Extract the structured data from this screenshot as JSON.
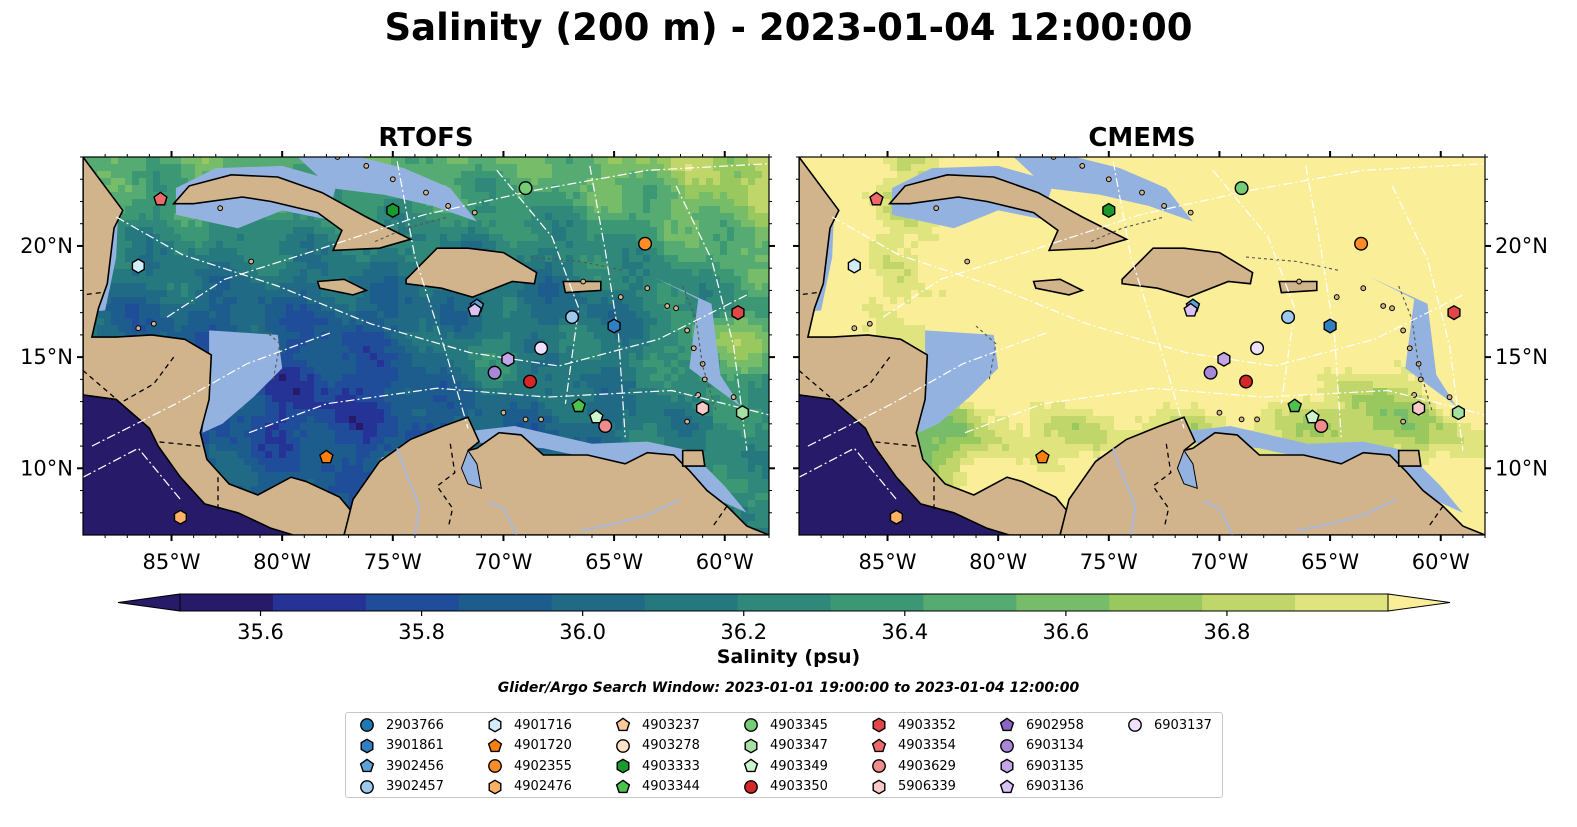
{
  "title": "Salinity (200 m) - 2023-01-04 12:00:00",
  "colors": {
    "land": "#d2b48c",
    "shelf": "#94b2e0",
    "deep_ocean": "#271a68",
    "border_line": "#000000",
    "track_line": "#ffffff",
    "river": "#a9b8d8"
  },
  "chart_data": [
    {
      "type": "heatmap",
      "title": "RTOFS",
      "x_ticks": [
        "85°W",
        "80°W",
        "75°W",
        "70°W",
        "65°W",
        "60°W"
      ],
      "y_ticks": [
        "20°N",
        "15°N",
        "10°N"
      ],
      "y_axis_side": "left",
      "xlim": [
        -89,
        -58
      ],
      "ylim": [
        7,
        24
      ],
      "pattern": "mostly low salinity (35.6–36.0) in the western and central Caribbean; higher values (36.4–36.9) in the northeast near the Greater Antilles and Atlantic"
    },
    {
      "type": "heatmap",
      "title": "CMEMS",
      "x_ticks": [
        "85°W",
        "80°W",
        "75°W",
        "70°W",
        "65°W",
        "60°W"
      ],
      "y_ticks": [
        "20°N",
        "15°N",
        "10°N"
      ],
      "y_axis_side": "right",
      "xlim": [
        -89,
        -58
      ],
      "ylim": [
        7,
        24
      ],
      "pattern": "mostly high salinity (above 36.8) across the Caribbean; moderate values (36.4–36.8) along the southern and western margins"
    }
  ],
  "colorbar": {
    "label": "Salinity (psu)",
    "min": 35.5,
    "max": 37.0,
    "step": 0.1,
    "ticks": [
      "35.6",
      "35.8",
      "36.0",
      "36.2",
      "36.4",
      "36.6",
      "36.8"
    ],
    "extend": "both",
    "colors": [
      "#271a68",
      "#263396",
      "#1f4d9a",
      "#1d5d8e",
      "#216a86",
      "#26787f",
      "#2f8879",
      "#3c9874",
      "#56ab73",
      "#76bc69",
      "#99c85f",
      "#c0d66a",
      "#dfe47f",
      "#fbee98"
    ]
  },
  "search_window": "Glider/Argo Search Window: 2023-01-01 19:00:00 to 2023-01-04 12:00:00",
  "floats": [
    {
      "id": "2903766",
      "marker": "circle",
      "color": "#1f77b4",
      "lon": null,
      "lat": null
    },
    {
      "id": "3901861",
      "marker": "hexagon",
      "color": "#2f7fc1",
      "lon": -65.0,
      "lat": 16.4
    },
    {
      "id": "3902456",
      "marker": "pentagon",
      "color": "#5ba3d9",
      "lon": -71.2,
      "lat": 17.3
    },
    {
      "id": "3902457",
      "marker": "circle",
      "color": "#9cc9ec",
      "lon": -66.9,
      "lat": 16.8
    },
    {
      "id": "4901716",
      "marker": "hexagon",
      "color": "#d3ecf9",
      "lon": -86.5,
      "lat": 19.1
    },
    {
      "id": "4901720",
      "marker": "pentagon",
      "color": "#ff7f0e",
      "lon": -78.0,
      "lat": 10.5
    },
    {
      "id": "4902355",
      "marker": "circle",
      "color": "#ff8c29",
      "lon": -63.6,
      "lat": 20.1
    },
    {
      "id": "4902476",
      "marker": "hexagon",
      "color": "#ffb266",
      "lon": -84.6,
      "lat": 7.8
    },
    {
      "id": "4903237",
      "marker": "pentagon",
      "color": "#ffc99a",
      "lon": null,
      "lat": null
    },
    {
      "id": "4903278",
      "marker": "circle",
      "color": "#ffe3c8",
      "lon": null,
      "lat": null
    },
    {
      "id": "4903333",
      "marker": "hexagon",
      "color": "#1a9a2a",
      "lon": -75.0,
      "lat": 21.6
    },
    {
      "id": "4903344",
      "marker": "pentagon",
      "color": "#4cc34c",
      "lon": -66.6,
      "lat": 12.8
    },
    {
      "id": "4903345",
      "marker": "circle",
      "color": "#74cc74",
      "lon": -69.0,
      "lat": 22.6
    },
    {
      "id": "4903347",
      "marker": "hexagon",
      "color": "#a4e2a4",
      "lon": -59.2,
      "lat": 12.5
    },
    {
      "id": "4903349",
      "marker": "pentagon",
      "color": "#cdf5cd",
      "lon": -65.8,
      "lat": 12.3
    },
    {
      "id": "4903350",
      "marker": "circle",
      "color": "#d62728",
      "lon": -68.8,
      "lat": 13.9
    },
    {
      "id": "4903352",
      "marker": "hexagon",
      "color": "#e04848",
      "lon": -59.4,
      "lat": 17.0
    },
    {
      "id": "4903354",
      "marker": "pentagon",
      "color": "#ee6a6a",
      "lon": -85.5,
      "lat": 22.1
    },
    {
      "id": "4903629",
      "marker": "circle",
      "color": "#f08c8c",
      "lon": -65.4,
      "lat": 11.9
    },
    {
      "id": "5906339",
      "marker": "hexagon",
      "color": "#f8c9c9",
      "lon": -61.0,
      "lat": 12.7
    },
    {
      "id": "6902958",
      "marker": "pentagon",
      "color": "#8a66c4",
      "lon": null,
      "lat": null
    },
    {
      "id": "6903134",
      "marker": "circle",
      "color": "#a887d8",
      "lon": -70.4,
      "lat": 14.3
    },
    {
      "id": "6903135",
      "marker": "hexagon",
      "color": "#c2a6e8",
      "lon": -69.8,
      "lat": 14.9
    },
    {
      "id": "6903136",
      "marker": "pentagon",
      "color": "#d9c3f4",
      "lon": -71.3,
      "lat": 17.1
    },
    {
      "id": "6903137",
      "marker": "circle",
      "color": "#efe0fc",
      "lon": -68.3,
      "lat": 15.4
    }
  ]
}
